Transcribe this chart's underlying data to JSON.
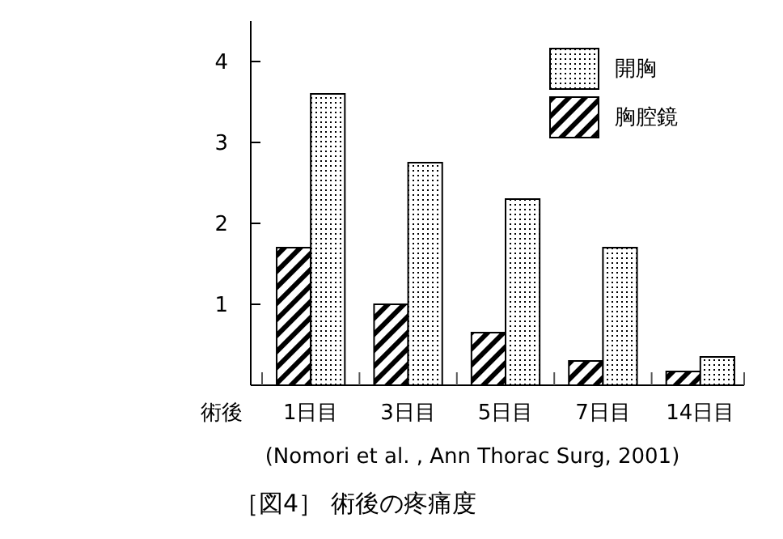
{
  "chart_data": {
    "type": "bar",
    "title": "［図4］ 術後の疼痛度",
    "categories": [
      "1日目",
      "3日目",
      "5日目",
      "7日目",
      "14日目"
    ],
    "series": [
      {
        "name": "胸腔鏡",
        "color": "#000000",
        "values": [
          1.7,
          1.0,
          0.65,
          0.3,
          0.17
        ]
      },
      {
        "name": "開胸",
        "color": "#000000",
        "values": [
          3.6,
          2.75,
          2.3,
          1.7,
          0.35
        ]
      }
    ],
    "ylim": [
      0,
      4.5
    ],
    "yticks": [
      1,
      2,
      3,
      4
    ],
    "grid": false,
    "legend": "top right",
    "annotations": [
      "術後",
      "(Nomori et al. , Ann Thorac Surg, 2001)"
    ]
  }
}
